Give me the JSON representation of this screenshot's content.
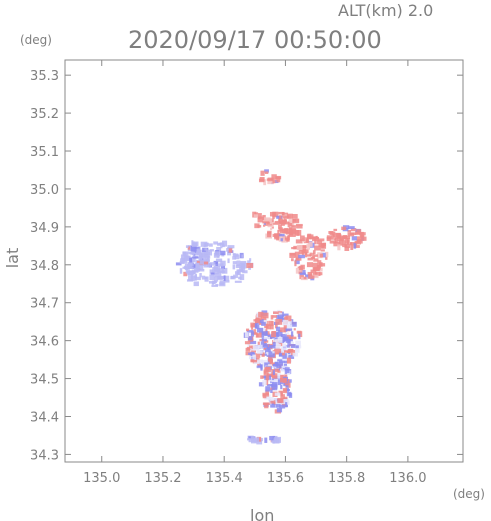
{
  "chart_data": {
    "type": "heatmap",
    "title": "2020/09/17 00:50:00",
    "subtitle": "ALT(km) 2.0",
    "xlabel": "lon",
    "ylabel": "lat",
    "x_unit": "(deg)",
    "y_unit": "(deg)",
    "xlim": [
      134.88,
      136.18
    ],
    "ylim": [
      34.28,
      35.34
    ],
    "x_ticks": [
      "135.0",
      "135.2",
      "135.4",
      "135.6",
      "135.8",
      "136.0"
    ],
    "y_ticks": [
      "34.3",
      "34.4",
      "34.5",
      "34.6",
      "34.7",
      "34.8",
      "34.9",
      "35.0",
      "35.1",
      "35.2",
      "35.3"
    ],
    "grid": false,
    "colors": {
      "positive": "#f08a8a",
      "negative": "#8c8cf0",
      "neutral": "#b9b9f4",
      "axis": "#8a8a8a"
    },
    "regions": [
      {
        "lon": 135.37,
        "lat": 34.8,
        "rlon": 0.12,
        "rlat": 0.06,
        "value": -0.3,
        "count": 160
      },
      {
        "lon": 135.31,
        "lat": 34.82,
        "rlon": 0.05,
        "rlat": 0.04,
        "value": -0.3,
        "count": 50
      },
      {
        "lon": 135.56,
        "lat": 34.6,
        "rlon": 0.09,
        "rlat": 0.08,
        "value": 0,
        "count": 260
      },
      {
        "lon": 135.57,
        "lat": 34.48,
        "rlon": 0.05,
        "rlat": 0.07,
        "value": 0,
        "count": 120
      },
      {
        "lon": 135.59,
        "lat": 34.9,
        "rlon": 0.06,
        "rlat": 0.04,
        "value": 0.5,
        "count": 80
      },
      {
        "lon": 135.68,
        "lat": 34.82,
        "rlon": 0.06,
        "rlat": 0.06,
        "value": 0.3,
        "count": 90
      },
      {
        "lon": 135.8,
        "lat": 34.87,
        "rlon": 0.06,
        "rlat": 0.03,
        "value": 0.3,
        "count": 60
      },
      {
        "lon": 135.55,
        "lat": 35.03,
        "rlon": 0.03,
        "rlat": 0.02,
        "value": 0.5,
        "count": 15
      },
      {
        "lon": 135.52,
        "lat": 34.92,
        "rlon": 0.03,
        "rlat": 0.02,
        "value": 0.4,
        "count": 12
      },
      {
        "lon": 135.53,
        "lat": 34.34,
        "rlon": 0.05,
        "rlat": 0.01,
        "value": -0.5,
        "count": 20
      }
    ]
  }
}
